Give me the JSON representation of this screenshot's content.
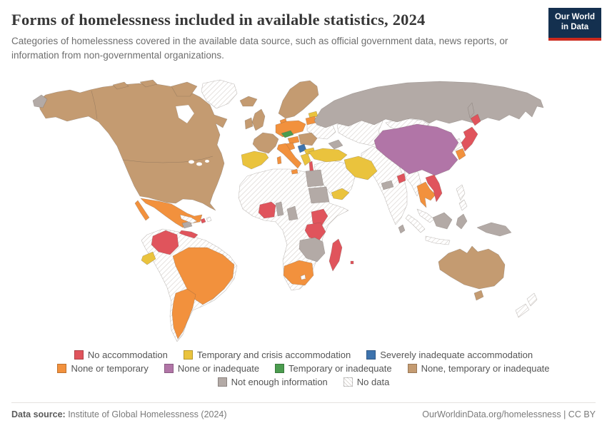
{
  "header": {
    "title": "Forms of homelessness included in available statistics, 2024",
    "subtitle": "Categories of homelessness covered in the available data source, such as official government data, news reports, or information from non-governmental organizations.",
    "logo": {
      "line1": "Our World",
      "line2": "in Data"
    }
  },
  "footer": {
    "source_label": "Data source:",
    "source_value": " Institute of Global Homelessness (2024)",
    "credit": "OurWorldinData.org/homelessness | CC BY"
  },
  "map": {
    "categories": {
      "no_accommodation": {
        "label": "No accommodation",
        "color": "#e0545c"
      },
      "temporary_and_crisis": {
        "label": "Temporary and crisis accommodation",
        "color": "#eac33d"
      },
      "severely_inadequate": {
        "label": "Severely inadequate accommodation",
        "color": "#3d73ad"
      },
      "none_or_temporary": {
        "label": "None or temporary",
        "color": "#f2913d"
      },
      "none_or_inadequate": {
        "label": "None or inadequate",
        "color": "#b175a7"
      },
      "temporary_or_inadequate": {
        "label": "Temporary or inadequate",
        "color": "#4b9c4f"
      },
      "none_temporary_or_inadequate": {
        "label": "None, temporary or inadequate",
        "color": "#c49b71"
      },
      "not_enough_information": {
        "label": "Not enough information",
        "color": "#b3aaa6"
      },
      "no_data": {
        "label": "No data",
        "color": "pattern:hatch"
      },
      "water": {
        "label": "Water",
        "color": "#ffffff"
      }
    },
    "legend_rows": [
      [
        "no_accommodation",
        "temporary_and_crisis",
        "severely_inadequate"
      ],
      [
        "none_or_temporary",
        "none_or_inadequate",
        "temporary_or_inadequate",
        "none_temporary_or_inadequate"
      ],
      [
        "not_enough_information",
        "no_data"
      ]
    ],
    "regions": {
      "north-america": "none_temporary_or_inadequate",
      "baffin-island": "none_temporary_or_inadequate",
      "arctic-island-west": "none_temporary_or_inadequate",
      "arctic-island-mid": "none_temporary_or_inadequate",
      "greenland": "no_data",
      "hudson-bay": "water",
      "great-lake-west": "water",
      "great-lake-mid": "water",
      "great-lake-east": "water",
      "chukotka": "not_enough_information",
      "mexico": "none_or_temporary",
      "baja-california": "none_or_temporary",
      "honduras": "not_enough_information",
      "panama-costa-rica": "no_accommodation",
      "cuba": "no_data",
      "haiti": "no_accommodation",
      "hispaniola-east": "no_data",
      "south-america-base": "no_data",
      "colombia": "no_accommodation",
      "ecuador": "temporary_and_crisis",
      "brazil": "none_or_temporary",
      "argentina-chile": "none_or_temporary",
      "iceland": "none_temporary_or_inadequate",
      "great-britain": "none_temporary_or_inadequate",
      "ireland": "none_temporary_or_inadequate",
      "scandinavia": "none_temporary_or_inadequate",
      "denmark": "none_or_temporary",
      "estonia": "temporary_and_crisis",
      "latvia-lithuania": "none_or_temporary",
      "france": "none_temporary_or_inadequate",
      "germany-poland": "none_or_temporary",
      "ukraine-belarus": "no_data",
      "austria": "temporary_or_inadequate",
      "hungary": "none_or_temporary",
      "croatia": "none_or_temporary",
      "romania": "none_temporary_or_inadequate",
      "serbia": "severely_inadequate",
      "bulgaria": "temporary_and_crisis",
      "greece": "temporary_and_crisis",
      "italy": "none_or_temporary",
      "sicily": "none_or_temporary",
      "sardinia": "none_or_temporary",
      "spain-portugal": "temporary_and_crisis",
      "turkey": "temporary_and_crisis",
      "caucasus": "not_enough_information",
      "israel": "no_accommodation",
      "arabia": "no_data",
      "yemen": "temporary_and_crisis",
      "iran": "temporary_and_crisis",
      "africa-base": "no_data",
      "egypt": "not_enough_information",
      "sudan": "not_enough_information",
      "togo-benin": "not_enough_information",
      "ivory-coast": "no_accommodation",
      "cameroon": "not_enough_information",
      "kenya": "no_accommodation",
      "tanzania": "no_accommodation",
      "zambia-zimbabwe-mozambique": "not_enough_information",
      "south-africa": "none_or_temporary",
      "lesotho": "no_data",
      "madagascar": "no_accommodation",
      "mauritius": "no_accommodation",
      "russia": "not_enough_information",
      "sakhalin": "not_enough_information",
      "central-asia": "no_data",
      "mongolia": "no_data",
      "china": "none_or_inadequate",
      "nepal": "not_enough_information",
      "india": "no_data",
      "sri-lanka": "not_enough_information",
      "bangladesh": "no_accommodation",
      "myanmar": "no_data",
      "thailand": "none_or_temporary",
      "vietnam": "no_accommodation",
      "malaysia": "no_data",
      "sumatra": "no_data",
      "java": "no_data",
      "borneo": "not_enough_information",
      "sulawesi": "not_enough_information",
      "philippines-north": "no_data",
      "philippines-south": "no_data",
      "new-guinea": "not_enough_information",
      "north-korea": "no_data",
      "south-korea": "none_or_temporary",
      "japan-hokkaido": "no_accommodation",
      "japan-main": "no_accommodation",
      "australia": "none_temporary_or_inadequate",
      "tasmania": "none_temporary_or_inadequate",
      "new-zealand-north": "no_data",
      "new-zealand-south": "no_data"
    }
  },
  "chart_data": {
    "type": "choropleth_map",
    "title": "Forms of homelessness included in available statistics, 2024",
    "legend_position": "bottom",
    "categories": [
      {
        "label": "No accommodation",
        "color": "#e0545c",
        "countries": [
          "Colombia",
          "Panama",
          "Costa Rica",
          "Haiti",
          "Cote d'Ivoire",
          "Kenya",
          "Tanzania",
          "Madagascar",
          "Mauritius",
          "Japan",
          "Vietnam",
          "Bangladesh",
          "Israel"
        ]
      },
      {
        "label": "Temporary and crisis accommodation",
        "color": "#eac33d",
        "countries": [
          "Spain",
          "Portugal",
          "Ecuador",
          "Turkey",
          "Iran",
          "Yemen",
          "Greece",
          "Bulgaria",
          "Estonia"
        ]
      },
      {
        "label": "Severely inadequate accommodation",
        "color": "#3d73ad",
        "countries": [
          "Serbia"
        ]
      },
      {
        "label": "None or temporary",
        "color": "#f2913d",
        "countries": [
          "Mexico",
          "Brazil",
          "Argentina",
          "Chile",
          "Germany",
          "Poland",
          "Italy",
          "Hungary",
          "Croatia",
          "Latvia",
          "Lithuania",
          "Denmark",
          "South Korea",
          "Thailand",
          "South Africa"
        ]
      },
      {
        "label": "None or inadequate",
        "color": "#b175a7",
        "countries": [
          "China"
        ]
      },
      {
        "label": "Temporary or inadequate",
        "color": "#4b9c4f",
        "countries": [
          "Austria"
        ]
      },
      {
        "label": "None, temporary or inadequate",
        "color": "#c49b71",
        "countries": [
          "United States",
          "Canada",
          "Iceland",
          "United Kingdom",
          "Ireland",
          "Norway",
          "Sweden",
          "Finland",
          "France",
          "Romania",
          "Australia"
        ]
      },
      {
        "label": "Not enough information",
        "color": "#b3aaa6",
        "countries": [
          "Russia",
          "Egypt",
          "Sudan",
          "Cameroon",
          "Togo",
          "Honduras",
          "Zambia",
          "Zimbabwe",
          "Mozambique",
          "Nepal",
          "Indonesia",
          "Papua New Guinea",
          "Sri Lanka",
          "Caucasus"
        ]
      },
      {
        "label": "No data",
        "color": "hatched",
        "countries": [
          "India",
          "Kazakhstan",
          "Saudi Arabia",
          "Ukraine",
          "Mongolia",
          "Myanmar",
          "Philippines",
          "Peru",
          "Bolivia",
          "Venezuela",
          "Cuba",
          "New Zealand",
          "Greenland",
          "Most of Africa"
        ]
      }
    ]
  }
}
